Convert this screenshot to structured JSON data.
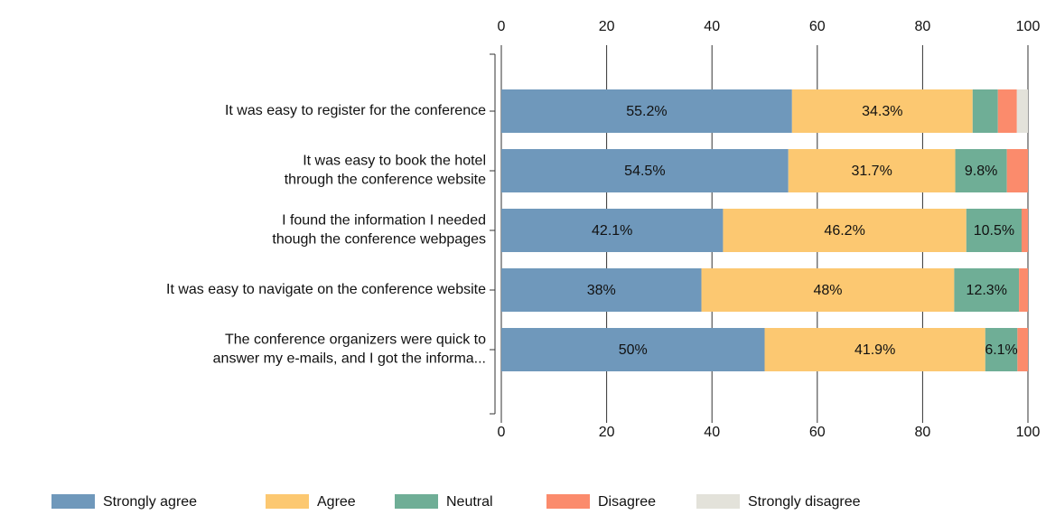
{
  "chart_data": {
    "type": "stacked_barh",
    "categories": [
      [
        "It was easy to register for the conference"
      ],
      [
        "It was easy to book the hotel",
        "through the conference website"
      ],
      [
        "I found the information I needed",
        "though the conference webpages"
      ],
      [
        "It was easy to navigate on the conference website"
      ],
      [
        "The conference organizers were quick to",
        "answer my e-mails, and I got the informa..."
      ]
    ],
    "series": [
      {
        "name": "Strongly agree",
        "color": "#6f98bb",
        "values": [
          55.2,
          54.5,
          42.1,
          38,
          50
        ],
        "value_labels": [
          "55.2%",
          "54.5%",
          "42.1%",
          "38%",
          "50%"
        ]
      },
      {
        "name": "Agree",
        "color": "#fcc871",
        "values": [
          34.3,
          31.7,
          46.2,
          48,
          41.9
        ],
        "value_labels": [
          "34.3%",
          "31.7%",
          "46.2%",
          "48%",
          "41.9%"
        ]
      },
      {
        "name": "Neutral",
        "color": "#6fae96",
        "values": [
          4.8,
          9.8,
          10.5,
          12.3,
          6.1
        ],
        "value_labels": [
          null,
          "9.8%",
          "10.5%",
          "12.3%",
          "6.1%"
        ]
      },
      {
        "name": "Disagree",
        "color": "#fb8b6c",
        "values": [
          3.6,
          4.0,
          1.2,
          1.7,
          2.0
        ],
        "value_labels": [
          null,
          null,
          null,
          null,
          null
        ]
      },
      {
        "name": "Strongly disagree",
        "color": "#e3e2da",
        "values": [
          2.1,
          0,
          0,
          0,
          0
        ],
        "value_labels": [
          null,
          null,
          null,
          null,
          null
        ]
      }
    ],
    "xlim": [
      0,
      100
    ],
    "xticks": [
      0,
      20,
      40,
      60,
      80,
      100
    ],
    "grid": true,
    "legend": "bottom"
  }
}
